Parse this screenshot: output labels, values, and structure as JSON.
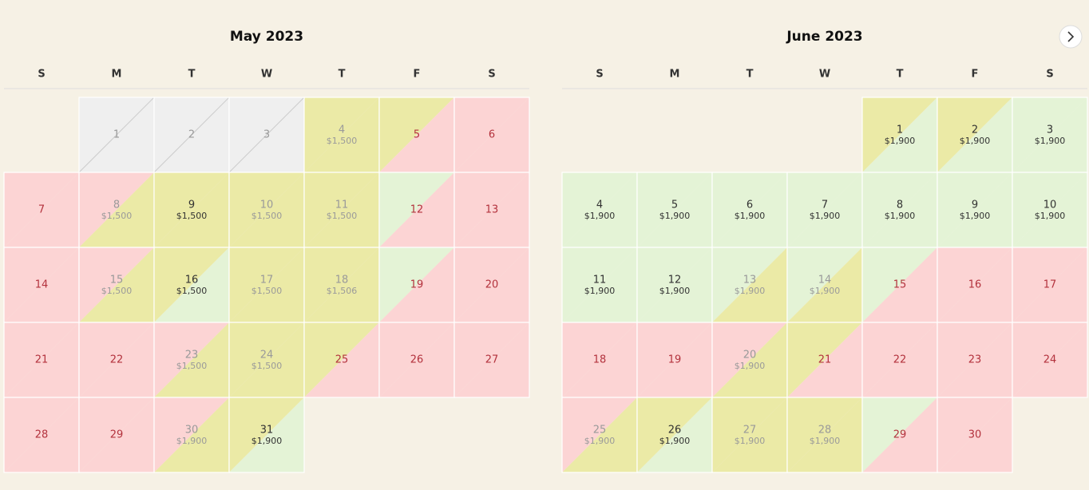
{
  "palette": {
    "red": "#fcd4d4",
    "yellow": "#ebeaa6",
    "green": "#e4f3d6",
    "gray": "#efefef"
  },
  "tones": {
    "red": "#b3323d",
    "dark": "#333333",
    "muted": "#9a9a9a"
  },
  "months": [
    {
      "title": "May 2023",
      "weekdays": [
        "S",
        "M",
        "T",
        "W",
        "T",
        "F",
        "S"
      ],
      "days": [
        null,
        {
          "day": "1",
          "a": "gray",
          "b": "gray",
          "tone": "muted"
        },
        {
          "day": "2",
          "a": "gray",
          "b": "gray",
          "tone": "muted"
        },
        {
          "day": "3",
          "a": "gray",
          "b": "gray",
          "tone": "muted"
        },
        {
          "day": "4",
          "price": "$1,500",
          "a": "yellow",
          "b": "yellow",
          "tone": "muted"
        },
        {
          "day": "5",
          "a": "yellow",
          "b": "red",
          "tone": "red"
        },
        {
          "day": "6",
          "a": "red",
          "b": "red",
          "tone": "red"
        },
        {
          "day": "7",
          "a": "red",
          "b": "red",
          "tone": "red"
        },
        {
          "day": "8",
          "price": "$1,500",
          "a": "red",
          "b": "yellow",
          "tone": "muted"
        },
        {
          "day": "9",
          "price": "$1,500",
          "a": "yellow",
          "b": "yellow",
          "tone": "dark"
        },
        {
          "day": "10",
          "price": "$1,500",
          "a": "yellow",
          "b": "yellow",
          "tone": "muted"
        },
        {
          "day": "11",
          "price": "$1,500",
          "a": "yellow",
          "b": "yellow",
          "tone": "muted"
        },
        {
          "day": "12",
          "a": "green",
          "b": "red",
          "tone": "red"
        },
        {
          "day": "13",
          "a": "red",
          "b": "red",
          "tone": "red"
        },
        {
          "day": "14",
          "a": "red",
          "b": "red",
          "tone": "red"
        },
        {
          "day": "15",
          "price": "$1,500",
          "a": "red",
          "b": "yellow",
          "tone": "muted"
        },
        {
          "day": "16",
          "price": "$1,500",
          "a": "yellow",
          "b": "green",
          "tone": "dark"
        },
        {
          "day": "17",
          "price": "$1,500",
          "a": "yellow",
          "b": "yellow",
          "tone": "muted"
        },
        {
          "day": "18",
          "price": "$1,506",
          "a": "yellow",
          "b": "yellow",
          "tone": "muted"
        },
        {
          "day": "19",
          "a": "green",
          "b": "red",
          "tone": "red"
        },
        {
          "day": "20",
          "a": "red",
          "b": "red",
          "tone": "red"
        },
        {
          "day": "21",
          "a": "red",
          "b": "red",
          "tone": "red"
        },
        {
          "day": "22",
          "a": "red",
          "b": "red",
          "tone": "red"
        },
        {
          "day": "23",
          "price": "$1,500",
          "a": "red",
          "b": "yellow",
          "tone": "muted"
        },
        {
          "day": "24",
          "price": "$1,500",
          "a": "yellow",
          "b": "yellow",
          "tone": "muted"
        },
        {
          "day": "25",
          "a": "yellow",
          "b": "red",
          "tone": "red"
        },
        {
          "day": "26",
          "a": "red",
          "b": "red",
          "tone": "red"
        },
        {
          "day": "27",
          "a": "red",
          "b": "red",
          "tone": "red"
        },
        {
          "day": "28",
          "a": "red",
          "b": "red",
          "tone": "red"
        },
        {
          "day": "29",
          "a": "red",
          "b": "red",
          "tone": "red"
        },
        {
          "day": "30",
          "price": "$1,900",
          "a": "red",
          "b": "yellow",
          "tone": "muted"
        },
        {
          "day": "31",
          "price": "$1,900",
          "a": "yellow",
          "b": "green",
          "tone": "dark"
        }
      ]
    },
    {
      "title": "June 2023",
      "weekdays": [
        "S",
        "M",
        "T",
        "W",
        "T",
        "F",
        "S"
      ],
      "days": [
        null,
        null,
        null,
        null,
        {
          "day": "1",
          "price": "$1,900",
          "a": "yellow",
          "b": "green",
          "tone": "dark"
        },
        {
          "day": "2",
          "price": "$1,900",
          "a": "yellow",
          "b": "green",
          "tone": "dark"
        },
        {
          "day": "3",
          "price": "$1,900",
          "a": "green",
          "b": "green",
          "tone": "dark"
        },
        {
          "day": "4",
          "price": "$1,900",
          "a": "green",
          "b": "green",
          "tone": "dark"
        },
        {
          "day": "5",
          "price": "$1,900",
          "a": "green",
          "b": "green",
          "tone": "dark"
        },
        {
          "day": "6",
          "price": "$1,900",
          "a": "green",
          "b": "green",
          "tone": "dark"
        },
        {
          "day": "7",
          "price": "$1,900",
          "a": "green",
          "b": "green",
          "tone": "dark"
        },
        {
          "day": "8",
          "price": "$1,900",
          "a": "green",
          "b": "green",
          "tone": "dark"
        },
        {
          "day": "9",
          "price": "$1,900",
          "a": "green",
          "b": "green",
          "tone": "dark"
        },
        {
          "day": "10",
          "price": "$1,900",
          "a": "green",
          "b": "green",
          "tone": "dark"
        },
        {
          "day": "11",
          "price": "$1,900",
          "a": "green",
          "b": "green",
          "tone": "dark"
        },
        {
          "day": "12",
          "price": "$1,900",
          "a": "green",
          "b": "green",
          "tone": "dark"
        },
        {
          "day": "13",
          "price": "$1,900",
          "a": "green",
          "b": "yellow",
          "tone": "muted"
        },
        {
          "day": "14",
          "price": "$1,900",
          "a": "green",
          "b": "yellow",
          "tone": "muted"
        },
        {
          "day": "15",
          "a": "green",
          "b": "red",
          "tone": "red"
        },
        {
          "day": "16",
          "a": "red",
          "b": "red",
          "tone": "red"
        },
        {
          "day": "17",
          "a": "red",
          "b": "red",
          "tone": "red"
        },
        {
          "day": "18",
          "a": "red",
          "b": "red",
          "tone": "red"
        },
        {
          "day": "19",
          "a": "red",
          "b": "red",
          "tone": "red"
        },
        {
          "day": "20",
          "price": "$1,900",
          "a": "red",
          "b": "yellow",
          "tone": "muted"
        },
        {
          "day": "21",
          "a": "yellow",
          "b": "red",
          "tone": "red"
        },
        {
          "day": "22",
          "a": "red",
          "b": "red",
          "tone": "red"
        },
        {
          "day": "23",
          "a": "red",
          "b": "red",
          "tone": "red"
        },
        {
          "day": "24",
          "a": "red",
          "b": "red",
          "tone": "red"
        },
        {
          "day": "25",
          "price": "$1,900",
          "a": "red",
          "b": "yellow",
          "tone": "muted"
        },
        {
          "day": "26",
          "price": "$1,900",
          "a": "yellow",
          "b": "green",
          "tone": "dark"
        },
        {
          "day": "27",
          "price": "$1,900",
          "a": "yellow",
          "b": "yellow",
          "tone": "muted"
        },
        {
          "day": "28",
          "price": "$1,900",
          "a": "yellow",
          "b": "yellow",
          "tone": "muted"
        },
        {
          "day": "29",
          "a": "green",
          "b": "red",
          "tone": "red"
        },
        {
          "day": "30",
          "a": "red",
          "b": "red",
          "tone": "red"
        }
      ]
    }
  ]
}
